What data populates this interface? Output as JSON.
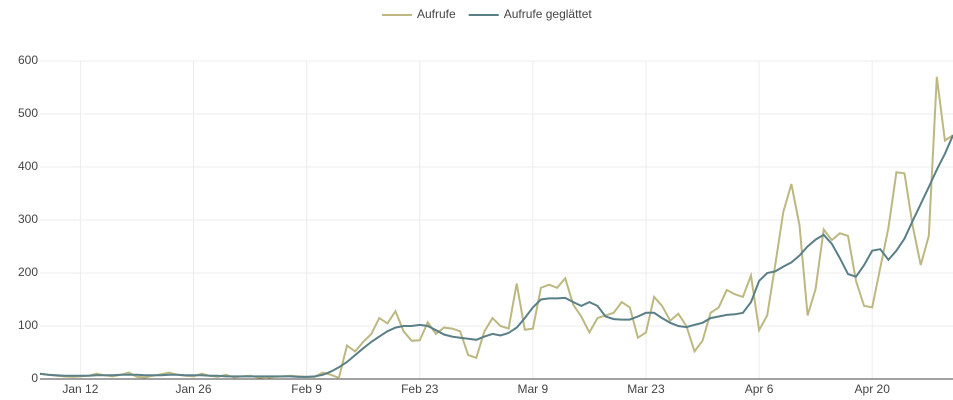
{
  "chart_data": {
    "type": "line",
    "categories": [
      null,
      null,
      null,
      null,
      null,
      "Jan 12",
      null,
      null,
      null,
      null,
      null,
      null,
      null,
      null,
      null,
      null,
      null,
      null,
      null,
      "Jan 26",
      null,
      null,
      null,
      null,
      null,
      null,
      null,
      null,
      null,
      null,
      null,
      null,
      null,
      "Feb 9",
      null,
      null,
      null,
      null,
      null,
      null,
      null,
      null,
      null,
      null,
      null,
      null,
      null,
      "Feb 23",
      null,
      null,
      null,
      null,
      null,
      null,
      null,
      null,
      null,
      null,
      null,
      null,
      null,
      "Mar 9",
      null,
      null,
      null,
      null,
      null,
      null,
      null,
      null,
      null,
      null,
      null,
      null,
      null,
      "Mar 23",
      null,
      null,
      null,
      null,
      null,
      null,
      null,
      null,
      null,
      null,
      null,
      null,
      null,
      "Apr 6",
      null,
      null,
      null,
      null,
      null,
      null,
      null,
      null,
      null,
      null,
      null,
      null,
      null,
      "Apr 20",
      null,
      null,
      null,
      null,
      null,
      null,
      null,
      null,
      null,
      null
    ],
    "series": [
      {
        "name": "Aufrufe",
        "color": "#bdb882",
        "values": [
          10,
          8,
          6,
          5,
          4,
          5,
          6,
          10,
          7,
          5,
          8,
          12,
          4,
          3,
          6,
          9,
          12,
          8,
          6,
          5,
          10,
          6,
          4,
          8,
          3,
          5,
          6,
          3,
          2,
          4,
          5,
          6,
          5,
          4,
          4,
          12,
          8,
          2,
          63,
          52,
          70,
          85,
          115,
          105,
          128,
          90,
          72,
          73,
          107,
          85,
          97,
          95,
          90,
          45,
          40,
          90,
          115,
          100,
          95,
          180,
          93,
          95,
          172,
          178,
          172,
          190,
          140,
          118,
          88,
          115,
          120,
          125,
          145,
          135,
          78,
          88,
          155,
          138,
          110,
          123,
          100,
          52,
          72,
          125,
          135,
          168,
          160,
          155,
          195,
          92,
          120,
          215,
          315,
          368,
          290,
          120,
          170,
          282,
          262,
          275,
          270,
          185,
          138,
          135,
          210,
          285,
          390,
          388,
          290,
          215,
          270,
          570,
          450,
          460
        ]
      },
      {
        "name": "Aufrufe geglättet",
        "color": "#5a7f86",
        "values": [
          10,
          8,
          7,
          6,
          6,
          6,
          6,
          7,
          7,
          7,
          8,
          8,
          8,
          7,
          7,
          7,
          8,
          8,
          7,
          7,
          7,
          6,
          6,
          5,
          5,
          5,
          5,
          5,
          5,
          5,
          5,
          5,
          4,
          4,
          5,
          8,
          14,
          22,
          32,
          45,
          58,
          70,
          80,
          90,
          97,
          100,
          100,
          102,
          100,
          92,
          84,
          80,
          78,
          76,
          74,
          80,
          85,
          82,
          87,
          97,
          115,
          135,
          150,
          152,
          152,
          153,
          145,
          138,
          145,
          138,
          118,
          113,
          112,
          112,
          118,
          125,
          125,
          115,
          106,
          100,
          98,
          102,
          106,
          115,
          118,
          121,
          122,
          125,
          145,
          185,
          200,
          203,
          212,
          220,
          233,
          250,
          263,
          272,
          255,
          228,
          198,
          193,
          215,
          242,
          245,
          225,
          242,
          265,
          298,
          330,
          362,
          395,
          425,
          460
        ]
      }
    ],
    "ylim": [
      0,
      600
    ],
    "yticks": [
      0,
      100,
      200,
      300,
      400,
      500,
      600
    ],
    "grid": true,
    "legend": "top"
  }
}
